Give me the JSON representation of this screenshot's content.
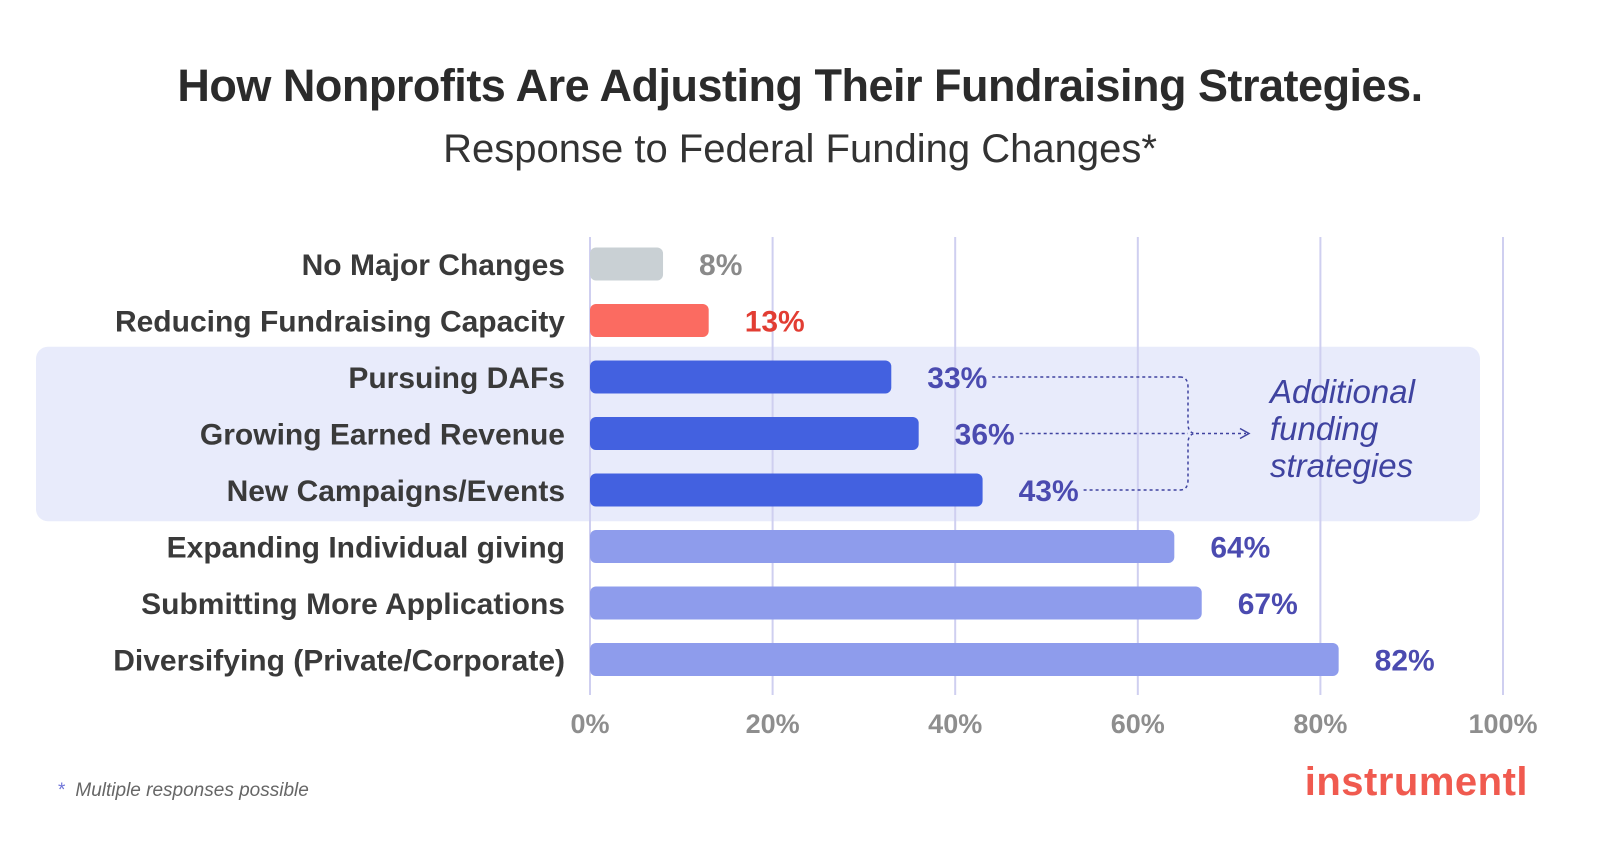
{
  "title": "How Nonprofits Are Adjusting Their Fundraising Strategies.",
  "subtitle": "Response to Federal Funding Changes*",
  "footnote": {
    "star": "*",
    "text": "Multiple responses possible"
  },
  "logo": "instrumentl",
  "annotation": {
    "lines": [
      "Additional",
      "funding",
      "strategies"
    ]
  },
  "colors": {
    "neutral": "#c9d0d4",
    "negative": "#fb6b61",
    "highlight": "#4361e0",
    "primary": "#8e9cec",
    "highlight_band": "#e8ebfb",
    "grid": "#cfcff0",
    "label_neutral": "#8a8a8a",
    "label_negative": "#e23d33",
    "label_primary": "#4b4bb0",
    "annotation": "#3f43a0"
  },
  "chart_data": {
    "type": "bar",
    "orientation": "horizontal",
    "categories": [
      "No Major Changes",
      "Reducing Fundraising Capacity",
      "Pursuing DAFs",
      "Growing Earned Revenue",
      "New Campaigns/Events",
      "Expanding Individual giving",
      "Submitting More Applications",
      "Diversifying (Private/Corporate)"
    ],
    "values": [
      8,
      13,
      33,
      36,
      43,
      64,
      67,
      82
    ],
    "value_labels": [
      "8%",
      "13%",
      "33%",
      "36%",
      "43%",
      "64%",
      "67%",
      "82%"
    ],
    "groups": [
      "neutral",
      "negative",
      "highlight",
      "highlight",
      "highlight",
      "primary",
      "primary",
      "primary"
    ],
    "highlighted_group_annotation": "Additional funding strategies",
    "xlim": [
      0,
      100
    ],
    "xticks": [
      0,
      20,
      40,
      60,
      80,
      100
    ],
    "xtick_labels": [
      "0%",
      "20%",
      "40%",
      "60%",
      "80%",
      "100%"
    ],
    "grid": "vertical",
    "xlabel": "",
    "ylabel": ""
  }
}
